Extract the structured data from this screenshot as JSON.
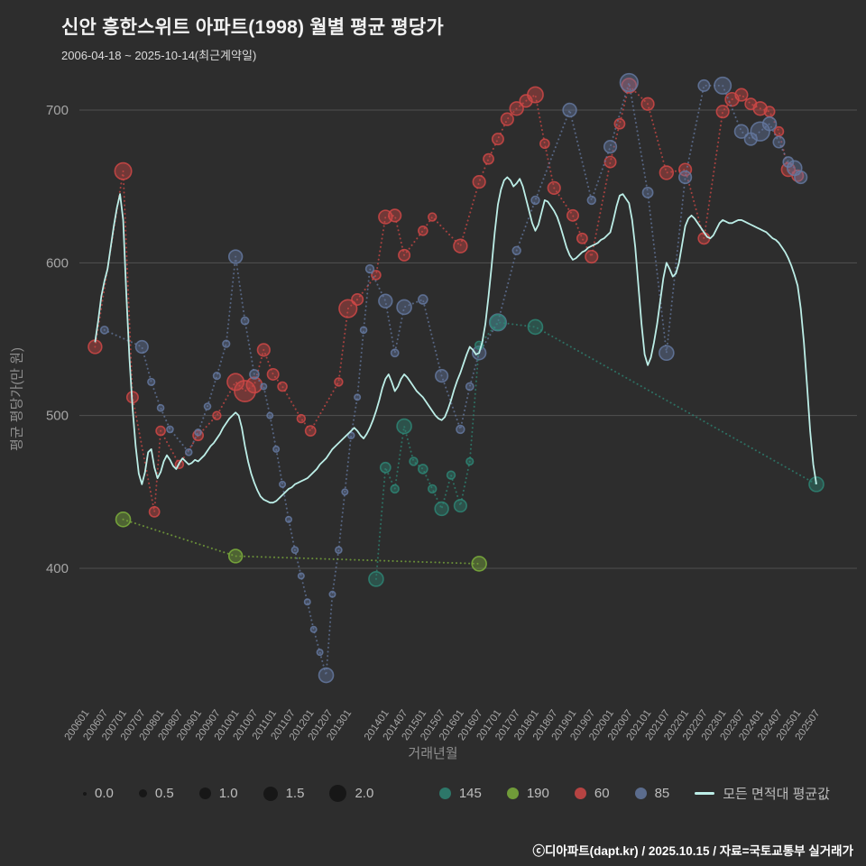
{
  "colors": {
    "background": "#2d2d2d",
    "grid": "#6e6e6e",
    "tick_label": "#a6a6a6",
    "axis_title": "#8f8f8f"
  },
  "header": {
    "subtitle": "2006-04-18 ~ 2025-10-14(최근계약일)"
  },
  "footer": {
    "credit": "ⓒ디아파트(dapt.kr) / 2025.10.15 / 자료=국토교통부 실거래가"
  },
  "legend": {
    "sizes": [
      {
        "label": "0.0"
      },
      {
        "label": "0.5"
      },
      {
        "label": "1.0"
      },
      {
        "label": "1.5"
      },
      {
        "label": "2.0"
      }
    ],
    "series": [
      {
        "label": "145",
        "color": "#2e8574"
      },
      {
        "label": "190",
        "color": "#7daf3c"
      },
      {
        "label": "60",
        "color": "#cf4846"
      },
      {
        "label": "85",
        "color": "#64789f"
      },
      {
        "label": "모든 면적대 평균값",
        "color": "#bceee7",
        "type": "line"
      }
    ]
  },
  "chart_data": {
    "type": "scatter",
    "title": "신안 흥한스위트 아파트(1998) 월별 평균 평당가",
    "xlabel": "거래년월",
    "ylabel": "평균 평당가(만 원)",
    "ylim": [
      325,
      730
    ],
    "yticks": [
      400,
      500,
      600,
      700
    ],
    "xticks": [
      "200601",
      "200607",
      "200701",
      "200707",
      "200801",
      "200807",
      "200901",
      "200907",
      "201001",
      "201007",
      "201101",
      "201107",
      "201201",
      "201207",
      "201301",
      "201401",
      "201407",
      "201501",
      "201507",
      "201601",
      "201607",
      "201701",
      "201707",
      "201801",
      "201807",
      "201901",
      "201907",
      "202001",
      "202007",
      "202101",
      "202107",
      "202201",
      "202207",
      "202301",
      "202307",
      "202401",
      "202407",
      "202501",
      "202507"
    ],
    "series": [
      {
        "name": "60",
        "color": "#cf4846",
        "points": [
          [
            "200604",
            545,
            0.9
          ],
          [
            "200701",
            660,
            1.2
          ],
          [
            "200704",
            512,
            0.7
          ],
          [
            "200711",
            437,
            0.6
          ],
          [
            "200801",
            490,
            0.5
          ],
          [
            "200807",
            468,
            0.4
          ],
          [
            "200901",
            487,
            0.6
          ],
          [
            "200907",
            500,
            0.4
          ],
          [
            "201001",
            522,
            1.2
          ],
          [
            "201004",
            516,
            1.6
          ],
          [
            "201007",
            520,
            1.1
          ],
          [
            "201010",
            543,
            0.8
          ],
          [
            "201101",
            527,
            0.7
          ],
          [
            "201104",
            519,
            0.5
          ],
          [
            "201110",
            498,
            0.4
          ],
          [
            "201201",
            490,
            0.6
          ],
          [
            "201210",
            522,
            0.4
          ],
          [
            "201301",
            570,
            1.3
          ],
          [
            "201304",
            576,
            0.7
          ],
          [
            "201310",
            592,
            0.5
          ],
          [
            "201401",
            630,
            0.9
          ],
          [
            "201404",
            631,
            0.8
          ],
          [
            "201407",
            605,
            0.7
          ],
          [
            "201501",
            621,
            0.5
          ],
          [
            "201504",
            630,
            0.4
          ],
          [
            "201601",
            611,
            0.9
          ],
          [
            "201607",
            653,
            0.8
          ],
          [
            "201610",
            668,
            0.6
          ],
          [
            "201701",
            681,
            0.7
          ],
          [
            "201704",
            694,
            0.8
          ],
          [
            "201707",
            701,
            0.9
          ],
          [
            "201710",
            706,
            0.8
          ],
          [
            "201801",
            710,
            1.1
          ],
          [
            "201804",
            678,
            0.5
          ],
          [
            "201807",
            649,
            0.8
          ],
          [
            "201901",
            631,
            0.7
          ],
          [
            "201904",
            616,
            0.6
          ],
          [
            "201907",
            604,
            0.8
          ],
          [
            "202001",
            666,
            0.7
          ],
          [
            "202004",
            691,
            0.6
          ],
          [
            "202007",
            716,
            1.0
          ],
          [
            "202101",
            704,
            0.8
          ],
          [
            "202107",
            659,
            0.9
          ],
          [
            "202201",
            661,
            0.8
          ],
          [
            "202207",
            616,
            0.7
          ],
          [
            "202301",
            699,
            0.8
          ],
          [
            "202304",
            707,
            0.9
          ],
          [
            "202307",
            710,
            0.8
          ],
          [
            "202310",
            704,
            0.7
          ],
          [
            "202401",
            701,
            0.9
          ],
          [
            "202404",
            699,
            0.6
          ],
          [
            "202407",
            686,
            0.5
          ],
          [
            "202410",
            661,
            0.9
          ],
          [
            "202501",
            657,
            0.7
          ]
        ]
      },
      {
        "name": "85",
        "color": "#64789f",
        "points": [
          [
            "200607",
            556,
            0.35
          ],
          [
            "200707",
            545,
            0.8
          ],
          [
            "200710",
            522,
            0.3
          ],
          [
            "200801",
            505,
            0.25
          ],
          [
            "200804",
            491,
            0.25
          ],
          [
            "200810",
            476,
            0.25
          ],
          [
            "200901",
            489,
            0.25
          ],
          [
            "200904",
            506,
            0.25
          ],
          [
            "200907",
            526,
            0.3
          ],
          [
            "200910",
            547,
            0.3
          ],
          [
            "201001",
            604,
            0.9
          ],
          [
            "201004",
            562,
            0.35
          ],
          [
            "201007",
            527,
            0.5
          ],
          [
            "201010",
            519,
            0.2
          ],
          [
            "201012",
            500,
            0.2
          ],
          [
            "201102",
            478,
            0.2
          ],
          [
            "201104",
            455,
            0.2
          ],
          [
            "201106",
            432,
            0.2
          ],
          [
            "201108",
            412,
            0.25
          ],
          [
            "201110",
            395,
            0.2
          ],
          [
            "201112",
            378,
            0.2
          ],
          [
            "201202",
            360,
            0.2
          ],
          [
            "201204",
            345,
            0.2
          ],
          [
            "201206",
            330,
            1.0
          ],
          [
            "201208",
            383,
            0.2
          ],
          [
            "201210",
            412,
            0.25
          ],
          [
            "201212",
            450,
            0.2
          ],
          [
            "201302",
            487,
            0.25
          ],
          [
            "201304",
            512,
            0.2
          ],
          [
            "201306",
            556,
            0.25
          ],
          [
            "201308",
            596,
            0.4
          ],
          [
            "201401",
            575,
            0.9
          ],
          [
            "201404",
            541,
            0.35
          ],
          [
            "201407",
            571,
            1.0
          ],
          [
            "201501",
            576,
            0.5
          ],
          [
            "201507",
            526,
            0.8
          ],
          [
            "201601",
            491,
            0.4
          ],
          [
            "201604",
            519,
            0.35
          ],
          [
            "201607",
            541,
            0.9
          ],
          [
            "201701",
            561,
            1.2
          ],
          [
            "201707",
            608,
            0.4
          ],
          [
            "201801",
            641,
            0.4
          ],
          [
            "201812",
            700,
            0.9
          ],
          [
            "201907",
            641,
            0.4
          ],
          [
            "202001",
            676,
            0.8
          ],
          [
            "202007",
            718,
            1.3
          ],
          [
            "202101",
            646,
            0.6
          ],
          [
            "202107",
            541,
            1.0
          ],
          [
            "202201",
            656,
            0.8
          ],
          [
            "202207",
            716,
            0.7
          ],
          [
            "202301",
            716,
            1.2
          ],
          [
            "202307",
            686,
            0.9
          ],
          [
            "202310",
            681,
            0.8
          ],
          [
            "202401",
            686,
            1.4
          ],
          [
            "202404",
            691,
            0.9
          ],
          [
            "202407",
            679,
            0.7
          ],
          [
            "202410",
            666,
            0.6
          ],
          [
            "202412",
            662,
            1.0
          ],
          [
            "202502",
            656,
            0.8
          ]
        ]
      },
      {
        "name": "145",
        "color": "#2e8574",
        "points": [
          [
            "201310",
            393,
            1.0
          ],
          [
            "201401",
            466,
            0.6
          ],
          [
            "201404",
            452,
            0.4
          ],
          [
            "201407",
            493,
            1.0
          ],
          [
            "201410",
            470,
            0.4
          ],
          [
            "201501",
            465,
            0.5
          ],
          [
            "201504",
            452,
            0.4
          ],
          [
            "201507",
            439,
            0.9
          ],
          [
            "201510",
            461,
            0.4
          ],
          [
            "201601",
            441,
            0.8
          ],
          [
            "201604",
            470,
            0.3
          ],
          [
            "201607",
            546,
            0.4
          ],
          [
            "201701",
            561,
            1.1
          ],
          [
            "201801",
            558,
            1.0
          ],
          [
            "202507",
            455,
            1.0
          ]
        ]
      },
      {
        "name": "190",
        "color": "#7daf3c",
        "points": [
          [
            "200701",
            432,
            1.0
          ],
          [
            "201001",
            408,
            0.9
          ],
          [
            "201607",
            403,
            1.0
          ]
        ]
      }
    ],
    "avg_line": {
      "name": "모든 면적대 평균값",
      "color": "#bceee7",
      "start": "200604",
      "values": [
        548,
        562,
        578,
        588,
        596,
        610,
        624,
        636,
        645,
        628,
        580,
        538,
        505,
        480,
        462,
        455,
        463,
        476,
        478,
        466,
        459,
        463,
        470,
        474,
        471,
        467,
        465,
        469,
        472,
        470,
        468,
        469,
        471,
        470,
        472,
        474,
        477,
        480,
        482,
        485,
        488,
        492,
        495,
        498,
        500,
        502,
        500,
        492,
        480,
        470,
        462,
        456,
        451,
        447,
        445,
        444,
        443,
        443,
        444,
        446,
        448,
        450,
        452,
        453,
        455,
        456,
        457,
        458,
        459,
        461,
        463,
        465,
        468,
        470,
        472,
        475,
        478,
        480,
        482,
        484,
        486,
        488,
        490,
        492,
        490,
        487,
        485,
        488,
        492,
        497,
        503,
        510,
        518,
        524,
        527,
        522,
        516,
        519,
        524,
        527,
        525,
        522,
        519,
        516,
        514,
        512,
        509,
        506,
        503,
        500,
        498,
        497,
        499,
        504,
        510,
        517,
        523,
        528,
        534,
        540,
        545,
        543,
        540,
        541,
        548,
        560,
        578,
        598,
        620,
        638,
        648,
        654,
        656,
        654,
        650,
        652,
        655,
        650,
        642,
        634,
        626,
        621,
        625,
        633,
        641,
        640,
        637,
        634,
        630,
        624,
        617,
        610,
        605,
        602,
        603,
        605,
        607,
        608,
        610,
        611,
        612,
        613,
        615,
        616,
        618,
        620,
        628,
        637,
        644,
        645,
        642,
        639,
        628,
        610,
        585,
        560,
        540,
        533,
        538,
        548,
        560,
        575,
        590,
        600,
        596,
        591,
        593,
        600,
        612,
        624,
        629,
        631,
        629,
        626,
        623,
        620,
        617,
        616,
        618,
        622,
        626,
        628,
        627,
        626,
        626,
        627,
        628,
        628,
        627,
        626,
        625,
        624,
        623,
        622,
        621,
        620,
        618,
        616,
        615,
        613,
        610,
        607,
        603,
        598,
        592,
        585,
        570,
        548,
        520,
        490,
        468,
        455
      ]
    }
  }
}
